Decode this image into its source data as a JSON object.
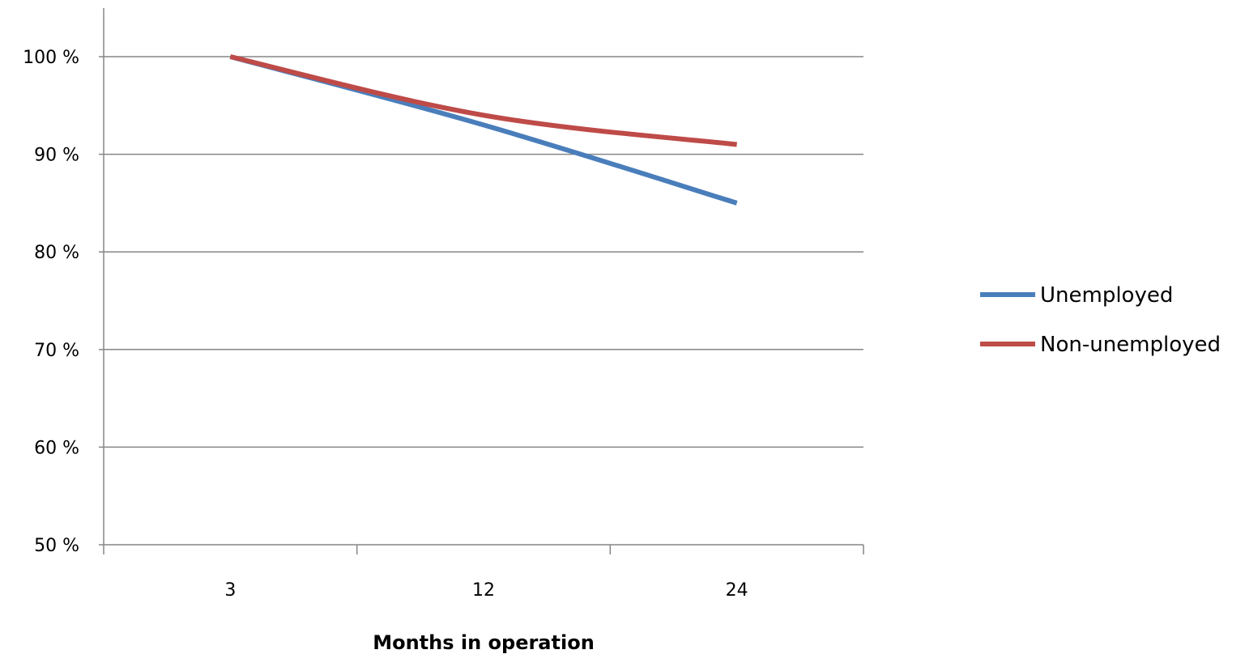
{
  "chart_data": {
    "type": "line",
    "categories": [
      "3",
      "12",
      "24"
    ],
    "series": [
      {
        "name": "Unemployed",
        "values": [
          100,
          93,
          85
        ],
        "color": "#4a7ebb"
      },
      {
        "name": "Non-unemployed",
        "values": [
          100,
          94,
          91
        ],
        "color": "#be4b48"
      }
    ],
    "xlabel": "Months in operation",
    "ylabel": "",
    "ylim": [
      50,
      100
    ],
    "yticks": [
      50,
      60,
      70,
      80,
      90,
      100
    ],
    "ytick_labels": [
      "50 %",
      "60 %",
      "70 %",
      "80 %",
      "90 %",
      "100 %"
    ],
    "grid": true,
    "gridline_color": "#868686",
    "legend_position": "right"
  }
}
